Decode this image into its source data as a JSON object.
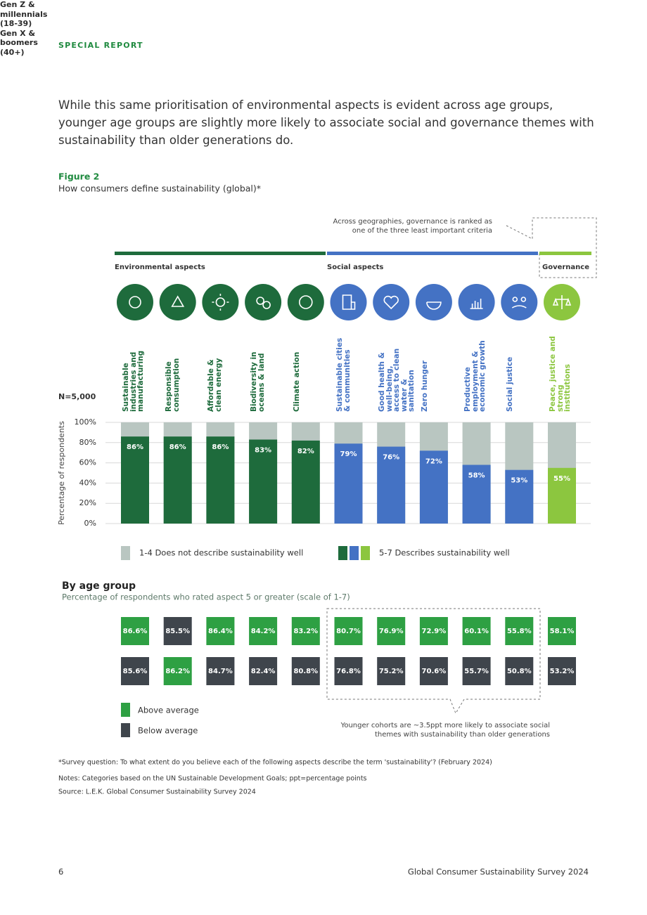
{
  "header": {
    "label": "SPECIAL REPORT"
  },
  "intro": "While this same prioritisation of environmental aspects is evident across age groups, younger age groups are slightly more likely to associate social and governance themes with sustainability than older generations do.",
  "figure": {
    "label": "Figure 2",
    "caption": "How consumers define sustainability (global)*"
  },
  "chart_data": {
    "type": "bar",
    "annotation": "Across geographies, governance is ranked as one of the three least important criteria",
    "n_label": "N=5,000",
    "ylabel": "Percentage of respondents",
    "ylim": [
      0,
      100
    ],
    "yticks": [
      {
        "value": 0,
        "label": "0%"
      },
      {
        "value": 20,
        "label": "20%"
      },
      {
        "value": 40,
        "label": "40%"
      },
      {
        "value": 60,
        "label": "60%"
      },
      {
        "value": 80,
        "label": "80%"
      },
      {
        "value": 100,
        "label": "100%"
      }
    ],
    "grid": true,
    "remainder_color": "#b9c6c1",
    "groups": [
      {
        "name": "Environmental aspects",
        "color": "#1e6b3c",
        "categories": [
          "Sustainable industries and manufacturing",
          "Responsible consumption",
          "Affordable & clean energy",
          "Biodiversity in oceans & land",
          "Climate action"
        ],
        "values": [
          86,
          86,
          86,
          83,
          82
        ],
        "value_labels": [
          "86%",
          "86%",
          "86%",
          "83%",
          "82%"
        ]
      },
      {
        "name": "Social aspects",
        "color": "#4472c4",
        "categories": [
          "Sustainable cities & communities",
          "Good health & well-being, access to clean water & sanitation",
          "Zero hunger",
          "Productive employment & economic growth",
          "Social justice"
        ],
        "values": [
          79,
          76,
          72,
          58,
          53
        ],
        "value_labels": [
          "79%",
          "76%",
          "72%",
          "58%",
          "53%"
        ]
      },
      {
        "name": "Governance",
        "color": "#8cc63f",
        "categories": [
          "Peace, justice and strong institutions"
        ],
        "values": [
          55
        ],
        "value_labels": [
          "55%"
        ]
      }
    ],
    "legend": [
      {
        "label": "1-4 Does not describe sustainability well",
        "colors": [
          "#b9c6c1"
        ]
      },
      {
        "label": "5-7 Describes sustainability well",
        "colors": [
          "#1e6b3c",
          "#4472c4",
          "#8cc63f"
        ]
      }
    ]
  },
  "age_chart": {
    "title": "By age group",
    "subtitle": "Percentage of respondents who rated aspect 5 or greater (scale of 1-7)",
    "above_color": "#2ea043",
    "below_color": "#3f454c",
    "rows": [
      {
        "name": "Gen Z & millennials (18-39)",
        "values": [
          86.6,
          85.5,
          86.4,
          84.2,
          83.2,
          80.7,
          76.9,
          72.9,
          60.1,
          55.8,
          58.1
        ],
        "value_labels": [
          "86.6%",
          "85.5%",
          "86.4%",
          "84.2%",
          "83.2%",
          "80.7%",
          "76.9%",
          "72.9%",
          "60.1%",
          "55.8%",
          "58.1%"
        ]
      },
      {
        "name": "Gen X & boomers (40+)",
        "values": [
          85.6,
          86.2,
          84.7,
          82.4,
          80.8,
          76.8,
          75.2,
          70.6,
          55.7,
          50.8,
          53.2
        ],
        "value_labels": [
          "85.6%",
          "86.2%",
          "84.7%",
          "82.4%",
          "80.8%",
          "76.8%",
          "75.2%",
          "70.6%",
          "55.7%",
          "50.8%",
          "53.2%"
        ]
      }
    ],
    "legend": [
      "Above average",
      "Below average"
    ],
    "annotation": "Younger cohorts are ~3.5ppt more likely to associate social themes with sustainability than older generations"
  },
  "notes": [
    "*Survey question: To what extent do you believe each of the following aspects describe the term 'sustainability'? (February 2024)",
    "Notes: Categories based on the UN Sustainable Development Goals; ppt=percentage points",
    "Source: L.E.K. Global Consumer Sustainability Survey 2024"
  ],
  "footer": {
    "page": "6",
    "title": "Global Consumer Sustainability Survey 2024"
  }
}
